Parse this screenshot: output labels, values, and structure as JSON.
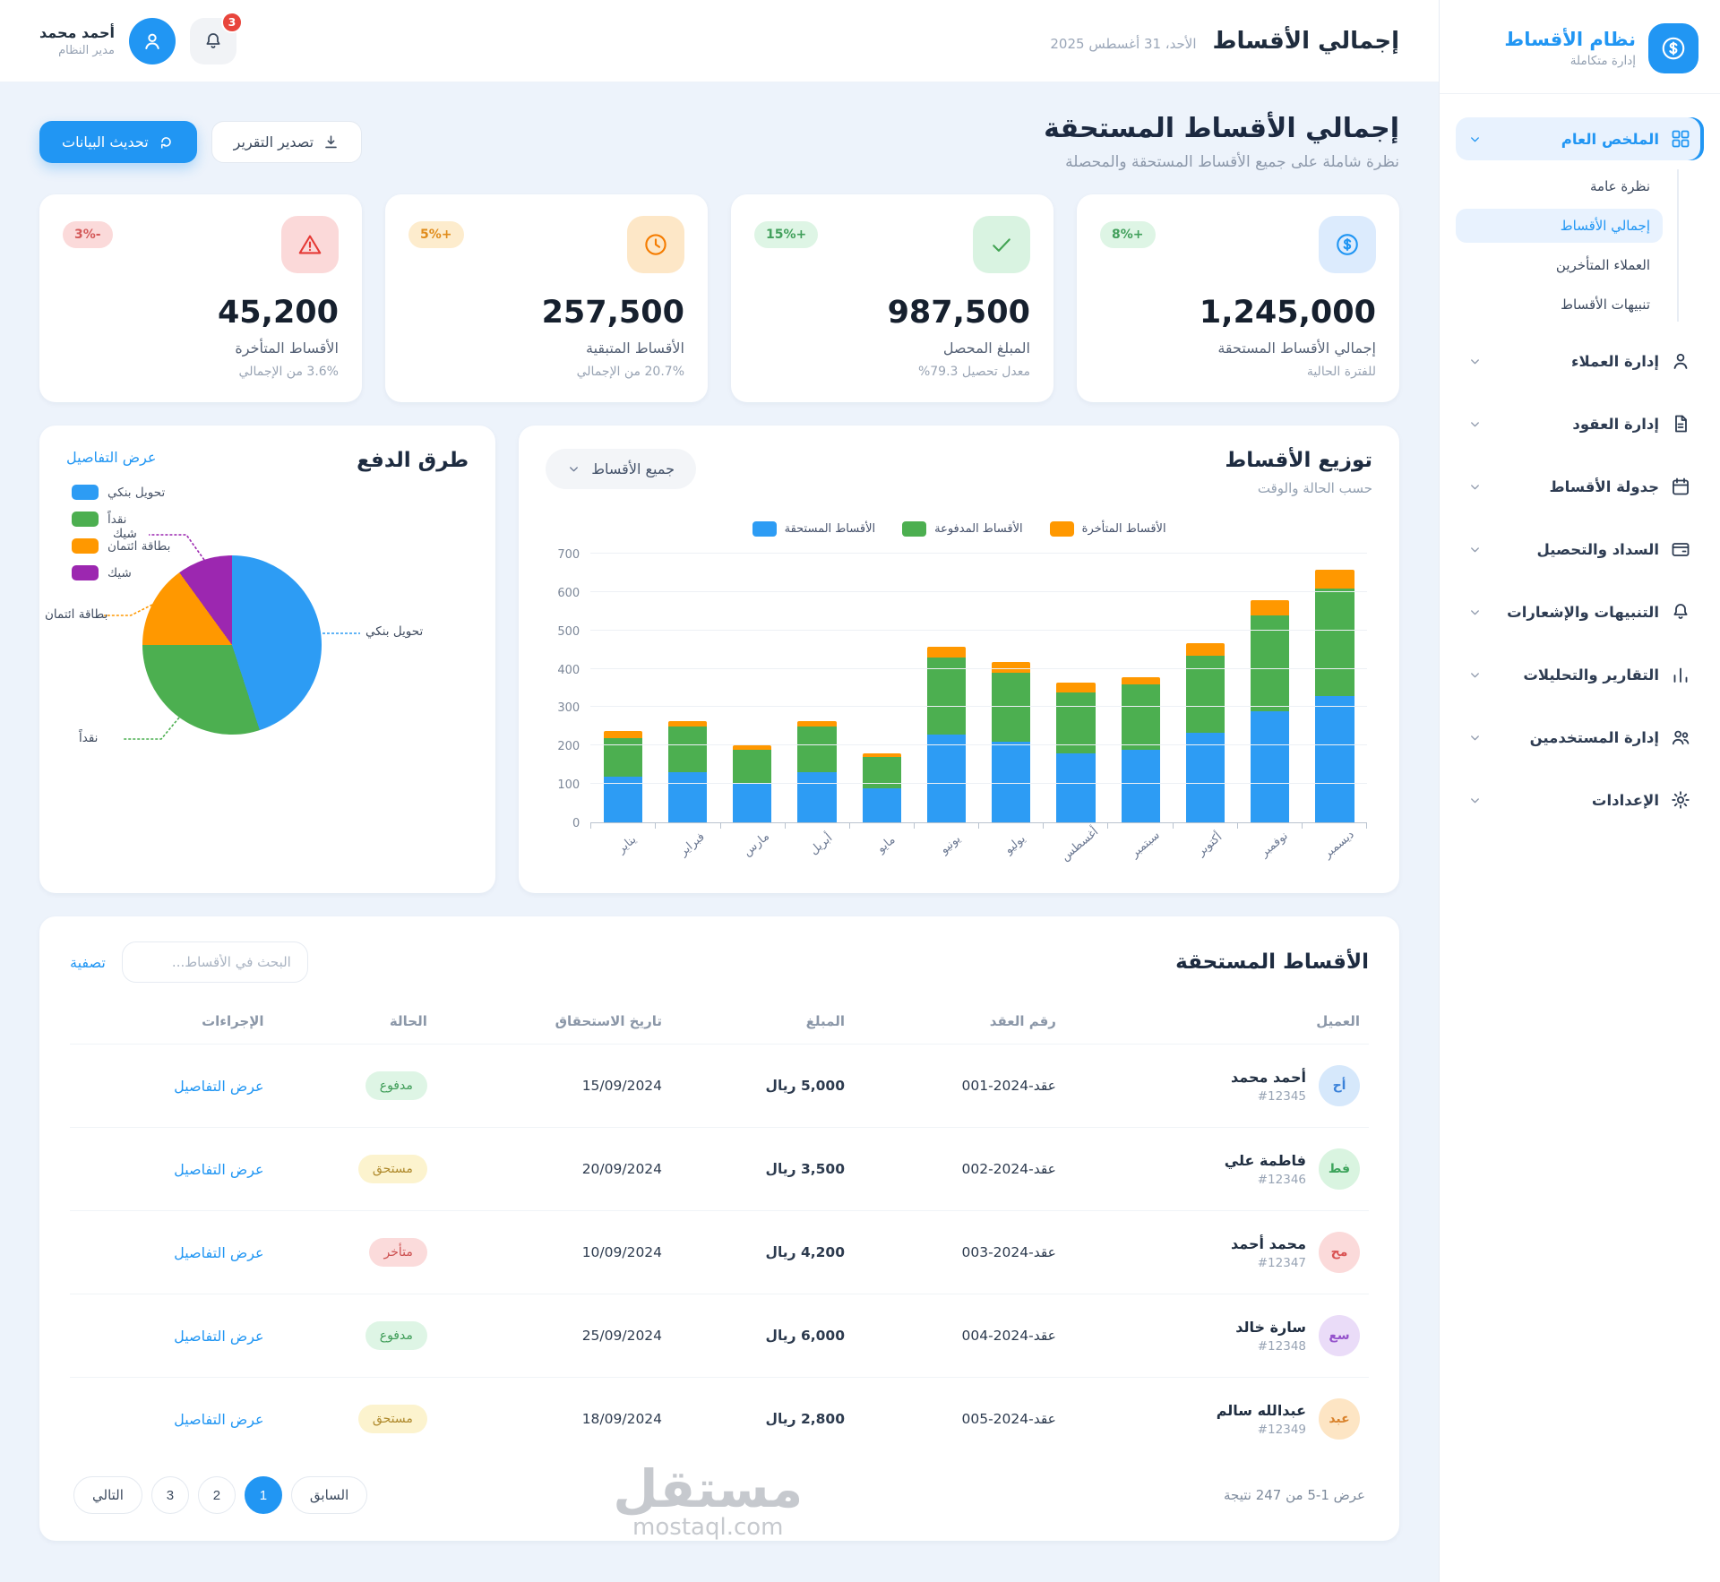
{
  "app": {
    "name": "نظام الأقساط",
    "tagline": "إدارة متكاملة"
  },
  "header": {
    "title": "إجمالي الأقساط",
    "date": "الأحد، 31 أغسطس 2025",
    "notifications_count": "3",
    "user": {
      "name": "أحمد محمد",
      "role": "مدير النظام"
    }
  },
  "page": {
    "title": "إجمالي الأقساط المستحقة",
    "subtitle": "نظرة شاملة على جميع الأقساط المستحقة والمحصلة",
    "refresh_label": "تحديث البيانات",
    "export_label": "تصدير التقرير"
  },
  "sidebar": {
    "sections": [
      {
        "label": "الملخص العام",
        "icon": "grid-icon",
        "active": true,
        "children": [
          "نظرة عامة",
          "إجمالي الأقساط",
          "العملاء المتأخرين",
          "تنبيهات الأقساط"
        ],
        "active_child": 1
      },
      {
        "label": "إدارة العملاء",
        "icon": "user-icon"
      },
      {
        "label": "إدارة العقود",
        "icon": "document-icon"
      },
      {
        "label": "جدولة الأقساط",
        "icon": "calendar-icon"
      },
      {
        "label": "السداد والتحصيل",
        "icon": "wallet-icon"
      },
      {
        "label": "التنبيهات والإشعارات",
        "icon": "bell-icon"
      },
      {
        "label": "التقارير والتحليلات",
        "icon": "bars-chart-icon"
      },
      {
        "label": "إدارة المستخدمين",
        "icon": "users-icon"
      },
      {
        "label": "الإعدادات",
        "icon": "gear-icon"
      }
    ]
  },
  "stats": [
    {
      "value": "1,245,000",
      "label": "إجمالي الأقساط المستحقة",
      "sublabel": "للفترة الحالية",
      "badge": "8%+",
      "badge_tone": "green",
      "icon": "dollar-icon",
      "icon_tone": "blue"
    },
    {
      "value": "987,500",
      "label": "المبلغ المحصل",
      "sublabel": "معدل تحصيل 79.3%",
      "badge": "15%+",
      "badge_tone": "green",
      "icon": "check-icon",
      "icon_tone": "green"
    },
    {
      "value": "257,500",
      "label": "الأقساط المتبقية",
      "sublabel": "20.7% من الإجمالي",
      "badge": "5%+",
      "badge_tone": "orange",
      "icon": "clock-icon",
      "icon_tone": "orange"
    },
    {
      "value": "45,200",
      "label": "الأقساط المتأخرة",
      "sublabel": "3.6% من الإجمالي",
      "badge": "3%-",
      "badge_tone": "red",
      "icon": "warning-icon",
      "icon_tone": "red"
    }
  ],
  "chart_data": [
    {
      "type": "bar",
      "stacked": true,
      "title": "توزيع الأقساط",
      "subtitle": "حسب الحالة والوقت",
      "filter_label": "جميع الأقساط",
      "categories": [
        "يناير",
        "فبراير",
        "مارس",
        "أبريل",
        "مايو",
        "يونيو",
        "يوليو",
        "أغسطس",
        "سبتمبر",
        "أكتوبر",
        "نوفمبر",
        "ديسمبر"
      ],
      "series": [
        {
          "name": "الأقساط المستحقة",
          "color": "#2d9cf4",
          "values": [
            120,
            130,
            100,
            130,
            90,
            230,
            210,
            180,
            190,
            235,
            290,
            330
          ]
        },
        {
          "name": "الأقساط المدفوعة",
          "color": "#4caf50",
          "values": [
            100,
            120,
            90,
            120,
            80,
            200,
            180,
            160,
            170,
            200,
            250,
            280
          ]
        },
        {
          "name": "الأقساط المتأخرة",
          "color": "#ff9800",
          "values": [
            20,
            15,
            12,
            15,
            10,
            30,
            30,
            25,
            20,
            33,
            40,
            50
          ]
        }
      ],
      "ylim": [
        0,
        700
      ],
      "ytick_step": 100,
      "grid": true,
      "legend_position": "top"
    },
    {
      "type": "pie",
      "title": "طرق الدفع",
      "details_label": "عرض التفاصيل",
      "labels": [
        "تحويل بنكي",
        "نقداً",
        "بطاقة ائتمان",
        "شيك"
      ],
      "values": [
        45,
        30,
        15,
        10
      ],
      "colors": [
        "#2d9cf4",
        "#4caf50",
        "#ff9800",
        "#9c27b0"
      ]
    }
  ],
  "table": {
    "title": "الأقساط المستحقة",
    "search_placeholder": "البحث في الأقساط...",
    "filter_label": "تصفية",
    "headers": [
      "العميل",
      "رقم العقد",
      "المبلغ",
      "تاريخ الاستحقاق",
      "الحالة",
      "الإجراءات"
    ],
    "action_label": "عرض التفاصيل",
    "rows": [
      {
        "initials": "أح",
        "avatar_tone": "blue",
        "name": "أحمد محمد",
        "id": "#12345",
        "contract": "عقد-2024-001",
        "amount": "5,000 ريال",
        "due_date": "15/09/2024",
        "status": "مدفوع",
        "status_tone": "green"
      },
      {
        "initials": "فط",
        "avatar_tone": "green",
        "name": "فاطمة علي",
        "id": "#12346",
        "contract": "عقد-2024-002",
        "amount": "3,500 ريال",
        "due_date": "20/09/2024",
        "status": "مستحق",
        "status_tone": "yellow"
      },
      {
        "initials": "مح",
        "avatar_tone": "red",
        "name": "محمد أحمد",
        "id": "#12347",
        "contract": "عقد-2024-003",
        "amount": "4,200 ريال",
        "due_date": "10/09/2024",
        "status": "متأخر",
        "status_tone": "red"
      },
      {
        "initials": "سع",
        "avatar_tone": "purple",
        "name": "سارة خالد",
        "id": "#12348",
        "contract": "عقد-2024-004",
        "amount": "6,000 ريال",
        "due_date": "25/09/2024",
        "status": "مدفوع",
        "status_tone": "green"
      },
      {
        "initials": "عبد",
        "avatar_tone": "orange",
        "name": "عبدالله سالم",
        "id": "#12349",
        "contract": "عقد-2024-005",
        "amount": "2,800 ريال",
        "due_date": "18/09/2024",
        "status": "مستحق",
        "status_tone": "yellow"
      }
    ],
    "footer": {
      "results_text": "عرض 1-5 من 247 نتيجة",
      "prev_label": "السابق",
      "pages": [
        "1",
        "2",
        "3"
      ],
      "active_page": "1",
      "next_label": "التالي"
    }
  },
  "watermark": {
    "line1": "مستقل",
    "line2": "mostaql.com"
  },
  "colors": {
    "accent": "#2196f3",
    "background": "#edf3fb"
  }
}
